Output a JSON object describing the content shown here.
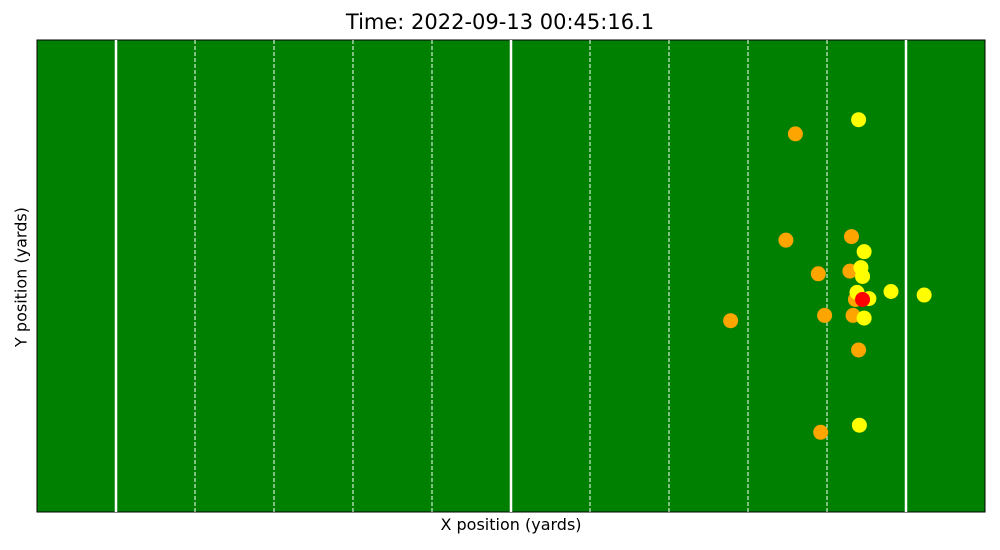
{
  "chart_data": {
    "type": "scatter",
    "title": "Time: 2022-09-13 00:45:16.1",
    "xlabel": "X position (yards)",
    "ylabel": "Y position (yards)",
    "xlim": [
      0,
      120
    ],
    "ylim": [
      0,
      53.3
    ],
    "grid": false,
    "background": "football-field",
    "field_color": "#008000",
    "line_color": "#ffffff",
    "solid_lines_x": [
      10,
      60,
      110
    ],
    "dashed_lines_x": [
      20,
      30,
      40,
      50,
      70,
      80,
      90,
      100
    ],
    "series": [
      {
        "color": "#ffa500",
        "points": [
          {
            "x": 96.0,
            "y": 42.7
          },
          {
            "x": 94.8,
            "y": 30.7
          },
          {
            "x": 103.1,
            "y": 31.1
          },
          {
            "x": 98.9,
            "y": 26.9
          },
          {
            "x": 102.9,
            "y": 27.2
          },
          {
            "x": 103.6,
            "y": 24.0
          },
          {
            "x": 99.7,
            "y": 22.2
          },
          {
            "x": 103.3,
            "y": 22.2
          },
          {
            "x": 87.8,
            "y": 21.6
          },
          {
            "x": 104.0,
            "y": 18.3
          },
          {
            "x": 99.2,
            "y": 9.0
          }
        ]
      },
      {
        "color": "#ffff00",
        "points": [
          {
            "x": 104.0,
            "y": 44.3
          },
          {
            "x": 104.7,
            "y": 29.4
          },
          {
            "x": 104.3,
            "y": 27.6
          },
          {
            "x": 104.5,
            "y": 26.6
          },
          {
            "x": 103.8,
            "y": 24.8
          },
          {
            "x": 105.3,
            "y": 24.1
          },
          {
            "x": 108.1,
            "y": 24.9
          },
          {
            "x": 112.3,
            "y": 24.5
          },
          {
            "x": 104.7,
            "y": 21.9
          },
          {
            "x": 104.1,
            "y": 9.8
          }
        ]
      },
      {
        "color": "#ff0000",
        "points": [
          {
            "x": 104.5,
            "y": 24.0
          }
        ]
      }
    ]
  }
}
